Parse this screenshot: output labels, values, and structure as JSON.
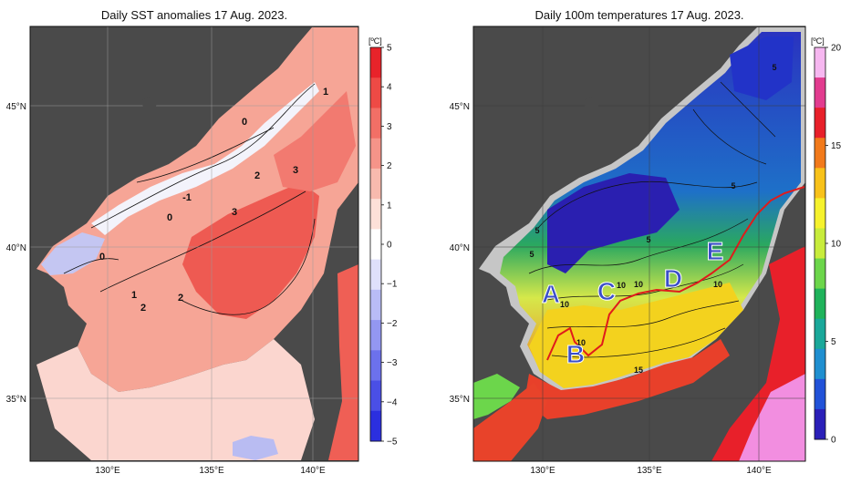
{
  "left_panel": {
    "title": "Daily SST anomalies 17 Aug. 2023.",
    "colorbar_unit": "[ºC]",
    "colorbar_ticks": [
      "5",
      "4",
      "3",
      "2",
      "1",
      "0",
      "−1",
      "−2",
      "−3",
      "−4",
      "−5"
    ],
    "colorbar_colors": [
      "#e8232a",
      "#ee4a45",
      "#f26f66",
      "#f59489",
      "#f8baae",
      "#fde0d8",
      "#ffffff",
      "#dfe0fb",
      "#b9bcf6",
      "#9397f1",
      "#6c71ec",
      "#4a4fe6",
      "#2b2fdf"
    ],
    "contour_labels": [
      "1",
      "0",
      "2",
      "3",
      "-1",
      "0",
      "3",
      "0",
      "1",
      "2",
      "2"
    ],
    "lat_labels": [
      "45°N",
      "40°N",
      "35°N"
    ],
    "lon_labels": [
      "130°E",
      "135°E",
      "140°E"
    ]
  },
  "right_panel": {
    "title": "Daily 100m temperatures 17 Aug. 2023.",
    "colorbar_unit": "[ºC]",
    "colorbar_ticks": [
      "20",
      "15",
      "10",
      "5",
      "0"
    ],
    "colorbar_colors": [
      "#f6b7f0",
      "#e23c8f",
      "#e8202a",
      "#f27a1b",
      "#f8c21a",
      "#f6f22d",
      "#c8ec3c",
      "#6cd64b",
      "#1fb35b",
      "#1aa89a",
      "#1f8fd0",
      "#2152d8",
      "#2a1fb8"
    ],
    "region_labels": [
      "A",
      "B",
      "C",
      "D",
      "E"
    ],
    "contour_labels": [
      "5",
      "5",
      "5",
      "5",
      "5",
      "10",
      "10",
      "10",
      "10",
      "10",
      "15"
    ],
    "lat_labels": [
      "45°N",
      "40°N",
      "35°N"
    ],
    "lon_labels": [
      "130°E",
      "135°E",
      "140°E"
    ]
  },
  "colors": {
    "land": "#4a4a4a",
    "nodata_sea": "#c6c6c6",
    "front_line": "#e01b1b",
    "region_label": "#3a4ec8"
  }
}
